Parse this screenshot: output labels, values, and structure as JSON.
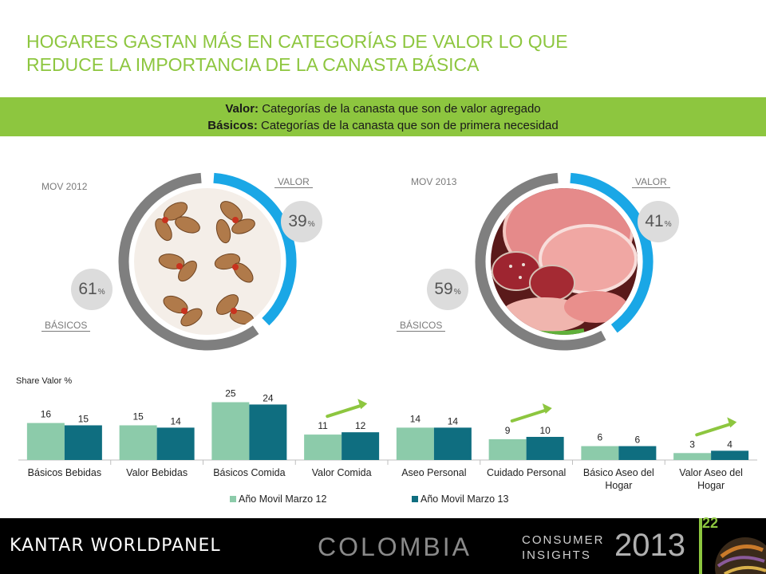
{
  "title": {
    "line1": "HOGARES GASTAN MÁS EN CATEGORÍAS DE VALOR LO QUE",
    "line2": "REDUCE LA IMPORTANCIA DE LA CANASTA BÁSICA"
  },
  "band": {
    "line1_bold": "Valor:",
    "line1_text": " Categorías de la canasta que son de valor agregado",
    "line2_bold": "Básicos:",
    "line2_text": " Categorías de la canasta que son de primera necesidad"
  },
  "donuts": [
    {
      "period": "MOV 2012",
      "valor_label": "VALOR",
      "basicos_label": "BÁSICOS",
      "valor_pct": 39,
      "basicos_pct": 61,
      "pct_symbol": "%",
      "image": "nuts-photo"
    },
    {
      "period": "MOV 2013",
      "valor_label": "VALOR",
      "basicos_label": "BÁSICOS",
      "valor_pct": 41,
      "basicos_pct": 59,
      "pct_symbol": "%",
      "image": "ham-photo"
    }
  ],
  "colors": {
    "accent_green": "#8dc63f",
    "valor_blue": "#1aa7e6",
    "basicos_gray": "#7f7f7f",
    "series_2012": "#8ccbaa",
    "series_2013": "#0f6e80"
  },
  "chart_data": {
    "type": "bar",
    "ylabel": "Share Valor %",
    "categories": [
      "Básicos Bebidas",
      "Valor Bebidas",
      "Básicos Comida",
      "Valor Comida",
      "Aseo Personal",
      "Cuidado Personal",
      "Básico Aseo del Hogar",
      "Valor Aseo del Hogar"
    ],
    "category_lines": [
      [
        "Básicos Bebidas"
      ],
      [
        "Valor Bebidas"
      ],
      [
        "Básicos Comida"
      ],
      [
        "Valor Comida"
      ],
      [
        "Aseo Personal"
      ],
      [
        "Cuidado Personal"
      ],
      [
        "Básico Aseo del",
        "Hogar"
      ],
      [
        "Valor Aseo del",
        "Hogar"
      ]
    ],
    "series": [
      {
        "name": "Año Movil Marzo 12",
        "values": [
          16,
          15,
          25,
          11,
          14,
          9,
          6,
          3
        ]
      },
      {
        "name": "Año Movil Marzo 13",
        "values": [
          15,
          14,
          24,
          12,
          14,
          10,
          6,
          4
        ]
      }
    ],
    "ylim": [
      0,
      30
    ],
    "trend_arrows_on": [
      "Valor Comida",
      "Cuidado Personal",
      "Valor Aseo del Hogar"
    ],
    "grid": false,
    "legend": "bottom"
  },
  "footer": {
    "brand": "KANTAR WORLDPANEL",
    "country": "COLOMBIA",
    "ci_line1": "CONSUMER",
    "ci_line2": "INSIGHTS",
    "year": "2013",
    "page": "22"
  }
}
